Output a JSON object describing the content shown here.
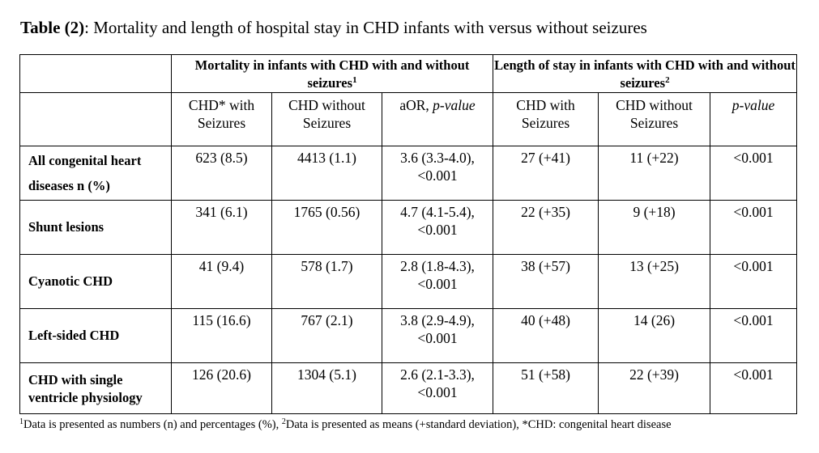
{
  "caption": {
    "label": "Table (2)",
    "text": ": Mortality and length of hospital stay in CHD infants with versus without seizures"
  },
  "header": {
    "group1": "Mortality in infants with CHD with and without seizures",
    "group1_sup": "1",
    "group2": "Length of stay in infants with CHD with and without seizures",
    "group2_sup": "2",
    "columns": [
      [
        "CHD* with",
        "Seizures"
      ],
      [
        "CHD without",
        "Seizures"
      ],
      [
        "aOR, ",
        "p-value"
      ],
      [
        "CHD with",
        "Seizures"
      ],
      [
        "CHD without",
        "Seizures"
      ],
      [
        "p-value"
      ]
    ]
  },
  "rows": [
    {
      "label": [
        "All congenital heart",
        "diseases  n (%)"
      ],
      "values": [
        "623 (8.5)",
        "4413 (1.1)",
        [
          "3.6 (3.3-4.0),",
          "<0.001"
        ],
        "27 (+41)",
        "11 (+22)",
        "<0.001"
      ]
    },
    {
      "label": [
        "Shunt lesions"
      ],
      "values": [
        "341 (6.1)",
        "1765 (0.56)",
        [
          "4.7 (4.1-5.4),",
          "<0.001"
        ],
        "22 (+35)",
        "9 (+18)",
        "<0.001"
      ]
    },
    {
      "label": [
        "Cyanotic CHD"
      ],
      "values": [
        "41 (9.4)",
        "578 (1.7)",
        [
          "2.8 (1.8-4.3),",
          "<0.001"
        ],
        "38 (+57)",
        "13 (+25)",
        "<0.001"
      ]
    },
    {
      "label": [
        "Left-sided CHD"
      ],
      "values": [
        "115 (16.6)",
        "767 (2.1)",
        [
          "3.8 (2.9-4.9),",
          "<0.001"
        ],
        "40 (+48)",
        "14 (26)",
        "<0.001"
      ]
    },
    {
      "label": [
        "CHD with single",
        "ventricle physiology"
      ],
      "values": [
        "126 (20.6)",
        "1304 (5.1)",
        [
          "2.6 (2.1-3.3),",
          "<0.001"
        ],
        "51 (+58)",
        "22 (+39)",
        "<0.001"
      ]
    }
  ],
  "footnote": {
    "sup1": "1",
    "part1": "Data is presented as numbers (n) and percentages (%), ",
    "sup2": "2",
    "part2": "Data is presented as means (+standard deviation), *CHD: congenital heart disease"
  }
}
